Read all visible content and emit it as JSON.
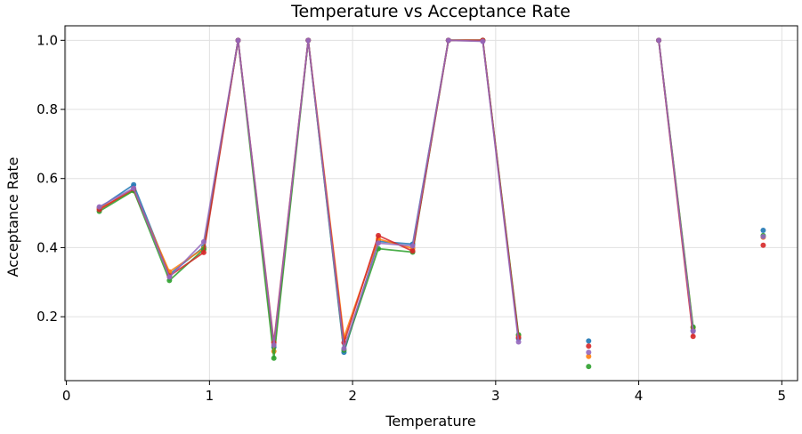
{
  "chart_data": {
    "type": "line",
    "title": "Temperature vs Acceptance Rate",
    "xlabel": "Temperature",
    "ylabel": "Acceptance Rate",
    "xlim": [
      -0.01,
      5.11
    ],
    "ylim": [
      0.015,
      1.042
    ],
    "xticks": [
      0,
      1,
      2,
      3,
      4,
      5
    ],
    "yticks": [
      0.2,
      0.4,
      0.6,
      0.8,
      1.0
    ],
    "xtick_labels": [
      "0",
      "1",
      "2",
      "3",
      "4",
      "5"
    ],
    "ytick_labels": [
      "0.2",
      "0.4",
      "0.6",
      "0.8",
      "1.0"
    ],
    "grid": true,
    "x": [
      0.23,
      0.47,
      0.72,
      0.96,
      1.2,
      1.45,
      1.69,
      1.94,
      2.18,
      2.42,
      2.67,
      2.91,
      3.16,
      3.65,
      4.14,
      4.38,
      4.87
    ],
    "series": [
      {
        "color": "#1f77b4",
        "values": [
          0.515,
          0.582,
          0.322,
          0.402,
          1.0,
          0.112,
          1.0,
          0.097,
          0.418,
          0.41,
          1.0,
          1.0,
          0.137,
          0.13,
          1.0,
          0.16,
          0.45
        ]
      },
      {
        "color": "#ff7f0e",
        "values": [
          0.513,
          0.565,
          0.33,
          0.398,
          1.0,
          0.1,
          1.0,
          0.14,
          0.425,
          0.398,
          1.0,
          1.0,
          0.146,
          0.085,
          1.0,
          0.168,
          0.43
        ]
      },
      {
        "color": "#2ca02c",
        "values": [
          0.505,
          0.565,
          0.305,
          0.395,
          1.0,
          0.08,
          1.0,
          0.103,
          0.397,
          0.387,
          1.0,
          1.0,
          0.148,
          0.056,
          1.0,
          0.17,
          0.435
        ]
      },
      {
        "color": "#d62728",
        "values": [
          0.51,
          0.57,
          0.318,
          0.386,
          1.0,
          0.125,
          1.0,
          0.125,
          0.435,
          0.39,
          1.0,
          1.0,
          0.14,
          0.115,
          1.0,
          0.143,
          0.407
        ]
      },
      {
        "color": "#9467bd",
        "values": [
          0.518,
          0.572,
          0.315,
          0.417,
          1.0,
          0.118,
          1.0,
          0.108,
          0.413,
          0.405,
          1.0,
          0.997,
          0.127,
          0.097,
          1.0,
          0.158,
          0.432
        ]
      }
    ],
    "line_segments": [
      [
        0,
        12
      ],
      [
        14,
        15
      ]
    ],
    "isolated_points": [
      13,
      16
    ]
  }
}
